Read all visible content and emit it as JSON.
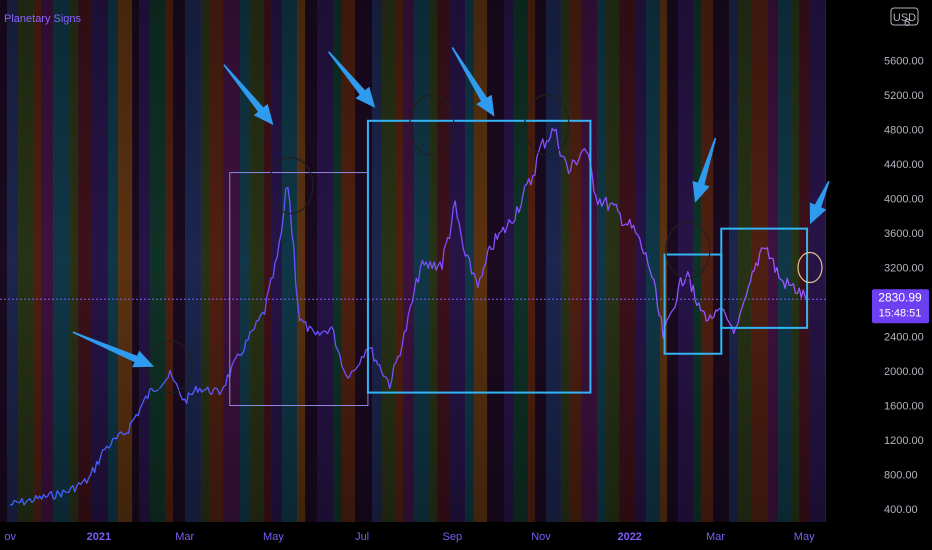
{
  "chart_data": {
    "type": "line",
    "title": "",
    "indicator_label": "Planetary Signs",
    "currency_label": "USD",
    "ylim": [
      250,
      6300
    ],
    "x_tick_labels": [
      "ov",
      "2021",
      "Mar",
      "May",
      "Jul",
      "Sep",
      "Nov",
      "2022",
      "Mar",
      "May"
    ],
    "x_tick_is_year": [
      false,
      true,
      false,
      false,
      false,
      false,
      false,
      true,
      false,
      false
    ],
    "x_tick_values": [
      "2020-11-01",
      "2021-01-01",
      "2021-03-01",
      "2021-05-01",
      "2021-07-01",
      "2021-09-01",
      "2021-11-01",
      "2022-01-01",
      "2022-03-01",
      "2022-05-01"
    ],
    "y_ticks": [
      400,
      800,
      1200,
      1600,
      2000,
      2400,
      3200,
      3600,
      4000,
      4400,
      4800,
      5200,
      5600
    ],
    "y_tick_labels": [
      "400.00",
      "800.00",
      "1200.00",
      "1600.00",
      "2000.00",
      "2400.00",
      "3200.00",
      "3600.00",
      "4000.00",
      "4400.00",
      "4800.00",
      "5200.00",
      "5600.00"
    ],
    "top_cut_label": "6",
    "last_price": 2830.99,
    "last_price_label": "2830.99",
    "countdown_label": "15:48:51",
    "series": [
      {
        "values_x": [
          "2020-11-01",
          "2020-11-20",
          "2020-12-10",
          "2020-12-25",
          "2021-01-05",
          "2021-01-20",
          "2021-02-05",
          "2021-02-19",
          "2021-03-01",
          "2021-03-10",
          "2021-03-25",
          "2021-04-05",
          "2021-04-15",
          "2021-04-25",
          "2021-05-05",
          "2021-05-11",
          "2021-05-19",
          "2021-05-30",
          "2021-06-10",
          "2021-06-20",
          "2021-06-25",
          "2021-07-05",
          "2021-07-20",
          "2021-07-30",
          "2021-08-10",
          "2021-08-25",
          "2021-09-03",
          "2021-09-10",
          "2021-09-20",
          "2021-09-28",
          "2021-10-10",
          "2021-10-25",
          "2021-11-01",
          "2021-11-10",
          "2021-11-20",
          "2021-12-01",
          "2021-12-10",
          "2021-12-20",
          "2022-01-05",
          "2022-01-15",
          "2022-01-24",
          "2022-02-05",
          "2022-02-10",
          "2022-02-15",
          "2022-02-24",
          "2022-03-05",
          "2022-03-15",
          "2022-03-25",
          "2022-04-03",
          "2022-04-15",
          "2022-04-25",
          "2022-05-03"
        ],
        "values_y": [
          450,
          520,
          600,
          740,
          1100,
          1300,
          1750,
          1950,
          1650,
          1800,
          1750,
          2100,
          2400,
          2700,
          3400,
          4200,
          2600,
          2400,
          2500,
          1950,
          2000,
          2300,
          1850,
          2400,
          3200,
          3250,
          3900,
          3300,
          3000,
          3450,
          3700,
          4200,
          4600,
          4800,
          4300,
          4600,
          4000,
          3900,
          3600,
          3200,
          2400,
          3000,
          3200,
          2800,
          2600,
          2700,
          2450,
          3000,
          3500,
          3050,
          2950,
          2830
        ]
      }
    ],
    "annotations": {
      "boxes": [
        {
          "x_start": "2021-04-01",
          "x_end": "2021-07-05",
          "y_low": 1600,
          "y_high": 4300,
          "color": "#8f8ae0",
          "stroke": 1
        },
        {
          "x_start": "2021-07-05",
          "x_end": "2021-12-05",
          "y_low": 1750,
          "y_high": 4900,
          "color": "#33b5f5",
          "stroke": 2
        },
        {
          "x_start": "2022-01-25",
          "x_end": "2022-03-05",
          "y_low": 2200,
          "y_high": 3350,
          "color": "#33b5f5",
          "stroke": 2
        },
        {
          "x_start": "2022-03-05",
          "x_end": "2022-05-03",
          "y_low": 2500,
          "y_high": 3650,
          "color": "#33b5f5",
          "stroke": 2
        }
      ],
      "circles": [
        {
          "x": "2021-02-19",
          "y": 2050,
          "rx": 22,
          "ry": 26,
          "color": "#202020"
        },
        {
          "x": "2021-05-13",
          "y": 4150,
          "rx": 22,
          "ry": 28,
          "color": "#202020"
        },
        {
          "x": "2021-08-18",
          "y": 4850,
          "rx": 22,
          "ry": 30,
          "color": "#202020"
        },
        {
          "x": "2021-11-05",
          "y": 4850,
          "rx": 22,
          "ry": 30,
          "color": "#202020"
        },
        {
          "x": "2022-02-10",
          "y": 3400,
          "rx": 22,
          "ry": 28,
          "color": "#202020"
        },
        {
          "x": "2022-05-05",
          "y": 3200,
          "rx": 12,
          "ry": 15,
          "color": "#e0c090"
        }
      ],
      "arrows": [
        {
          "from_x": "2020-12-14",
          "from_y": 2450,
          "to_x": "2021-02-08",
          "to_y": 2050
        },
        {
          "from_x": "2021-03-28",
          "from_y": 5550,
          "to_x": "2021-05-01",
          "to_y": 4850
        },
        {
          "from_x": "2021-06-08",
          "from_y": 5700,
          "to_x": "2021-07-10",
          "to_y": 5050
        },
        {
          "from_x": "2021-09-01",
          "from_y": 5750,
          "to_x": "2021-09-30",
          "to_y": 4950
        },
        {
          "from_x": "2022-03-01",
          "from_y": 4700,
          "to_x": "2022-02-15",
          "to_y": 3950
        },
        {
          "from_x": "2022-05-18",
          "from_y": 4200,
          "to_x": "2022-05-05",
          "to_y": 3700
        }
      ]
    }
  }
}
